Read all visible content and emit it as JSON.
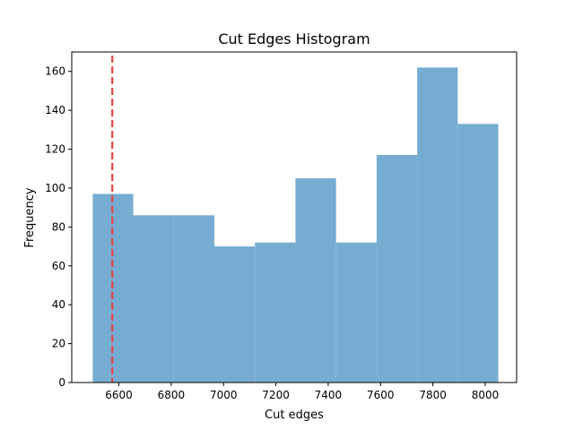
{
  "chart_data": {
    "type": "bar",
    "title": "Cut Edges Histogram",
    "xlabel": "Cut edges",
    "ylabel": "Frequency",
    "xlim": [
      6420,
      8120
    ],
    "ylim": [
      0,
      170
    ],
    "xticks": [
      6600,
      6800,
      7000,
      7200,
      7400,
      7600,
      7800,
      8000
    ],
    "yticks": [
      0,
      20,
      40,
      60,
      80,
      100,
      120,
      140,
      160
    ],
    "grid": false,
    "bin_edges": [
      6500,
      6655,
      6810,
      6965,
      7120,
      7275,
      7430,
      7585,
      7740,
      7895,
      8050
    ],
    "values": [
      97,
      86,
      86,
      70,
      72,
      105,
      72,
      117,
      162,
      133
    ],
    "bar_color": "#77acd2",
    "reference_line": {
      "x": 6575,
      "color": "#e84444",
      "style": "dashed"
    }
  }
}
